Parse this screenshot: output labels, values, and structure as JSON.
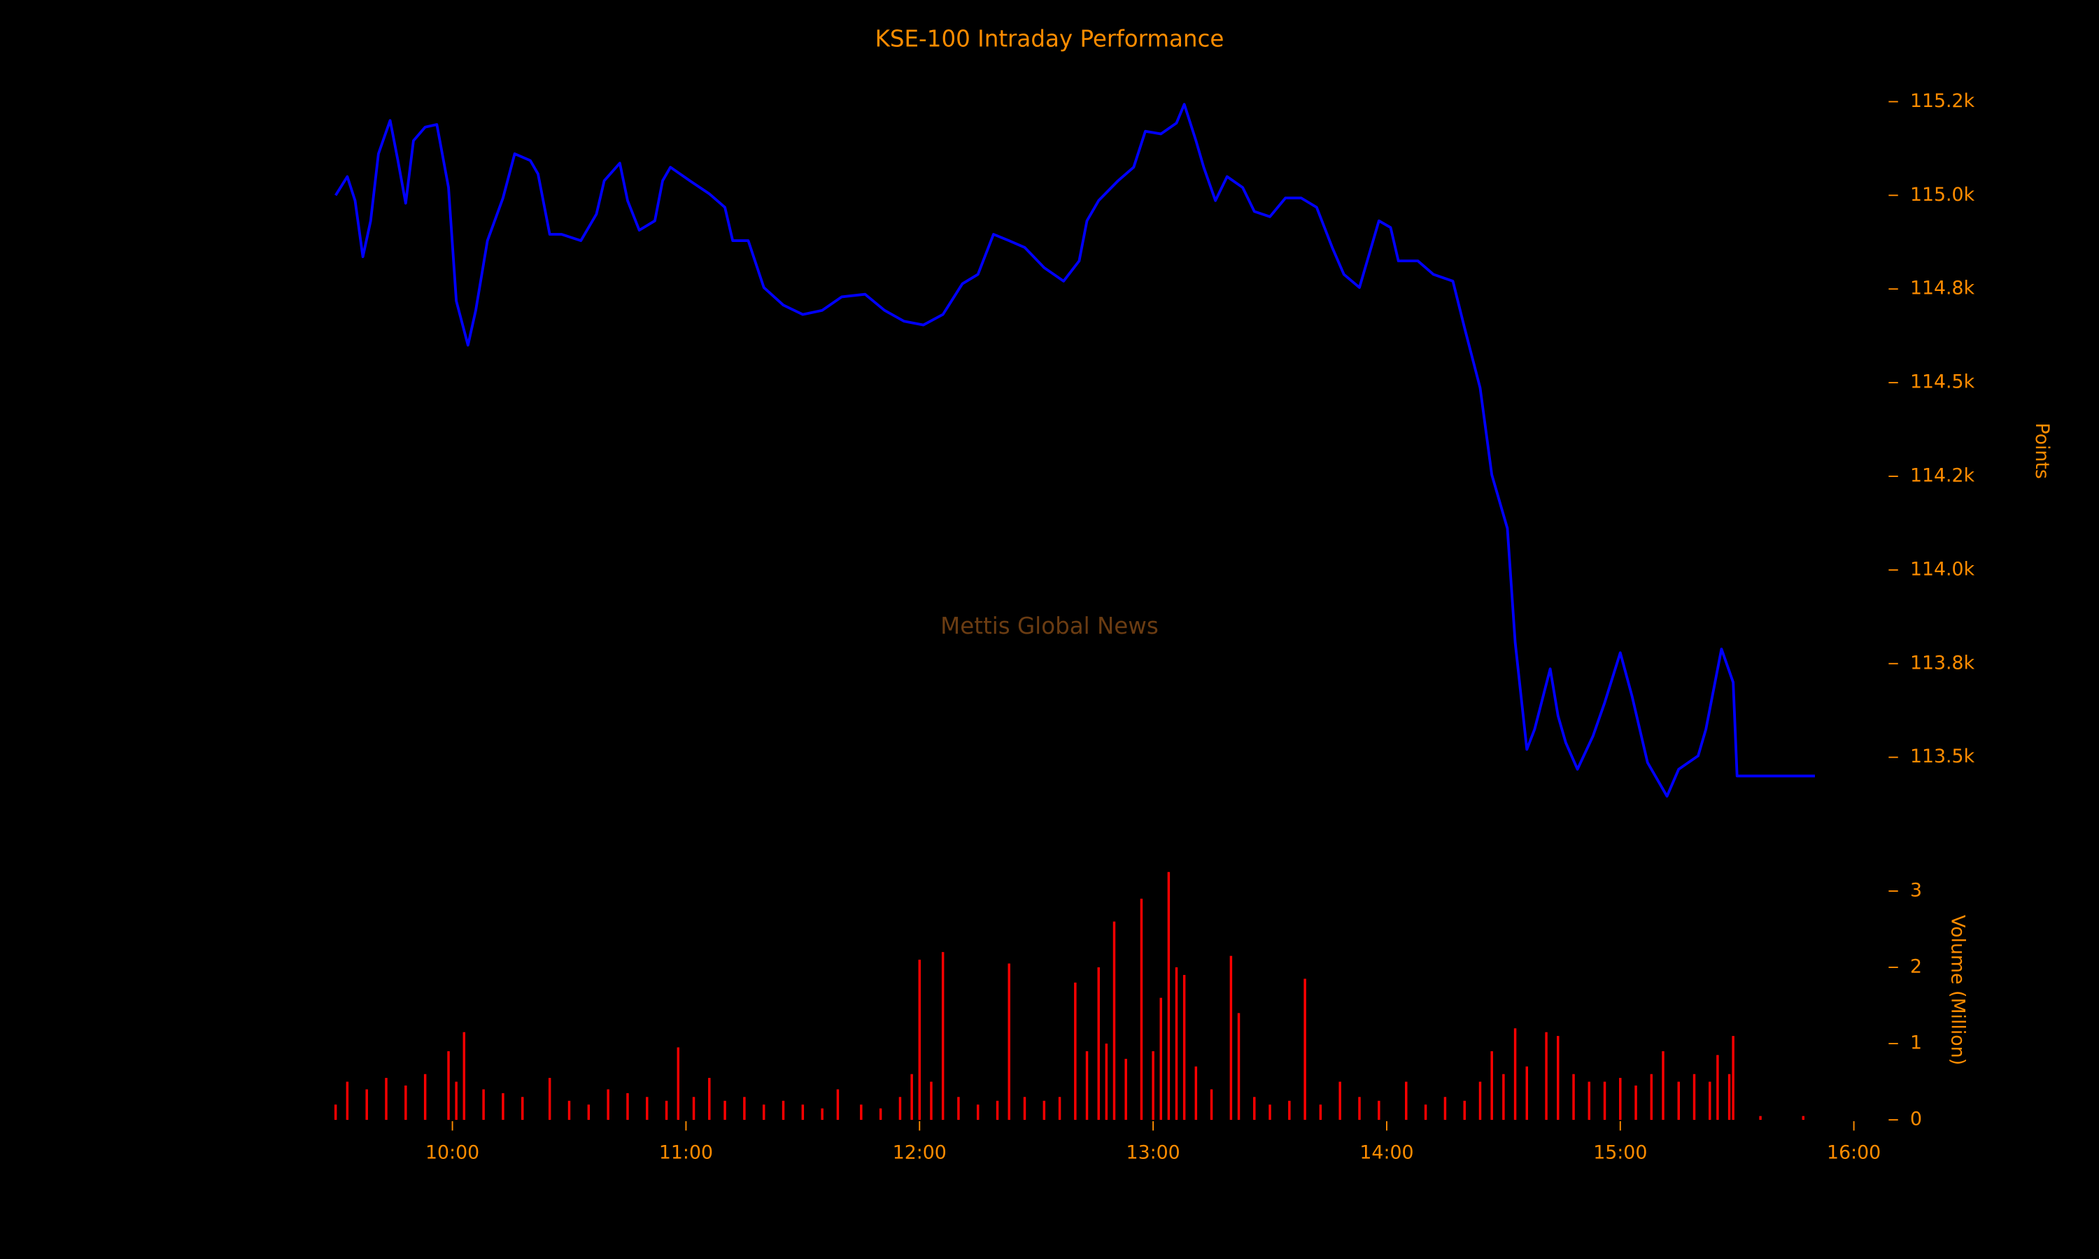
{
  "chart_data": [
    {
      "type": "line",
      "title": "KSE-100 Intraday Performance",
      "ylabel": "Points",
      "annotation": "Mettis Global News",
      "color": "#0000ff",
      "xlim": [
        "09:30",
        "16:00"
      ],
      "ylim": [
        113300,
        115300
      ],
      "yticks": [
        {
          "value": 115250,
          "label": "115.2k"
        },
        {
          "value": 115000,
          "label": "115.0k"
        },
        {
          "value": 114750,
          "label": "114.8k"
        },
        {
          "value": 114500,
          "label": "114.5k"
        },
        {
          "value": 114250,
          "label": "114.2k"
        },
        {
          "value": 114000,
          "label": "114.0k"
        },
        {
          "value": 113750,
          "label": "113.8k"
        },
        {
          "value": 113500,
          "label": "113.5k"
        }
      ],
      "x": [
        "09:30",
        "09:33",
        "09:35",
        "09:37",
        "09:39",
        "09:41",
        "09:44",
        "09:46",
        "09:48",
        "09:50",
        "09:53",
        "09:56",
        "09:59",
        "10:01",
        "10:04",
        "10:06",
        "10:09",
        "10:13",
        "10:16",
        "10:20",
        "10:22",
        "10:25",
        "10:28",
        "10:33",
        "10:37",
        "10:39",
        "10:43",
        "10:45",
        "10:48",
        "10:52",
        "10:54",
        "10:56",
        "11:01",
        "11:06",
        "11:10",
        "11:12",
        "11:16",
        "11:20",
        "11:25",
        "11:30",
        "11:35",
        "11:40",
        "11:46",
        "11:51",
        "11:56",
        "12:01",
        "12:06",
        "12:11",
        "12:15",
        "12:19",
        "12:23",
        "12:27",
        "12:32",
        "12:37",
        "12:41",
        "12:43",
        "12:46",
        "12:51",
        "12:55",
        "12:58",
        "13:02",
        "13:06",
        "13:08",
        "13:11",
        "13:13",
        "13:16",
        "13:19",
        "13:23",
        "13:26",
        "13:30",
        "13:34",
        "13:38",
        "13:42",
        "13:46",
        "13:49",
        "13:53",
        "13:55",
        "13:58",
        "14:01",
        "14:03",
        "14:08",
        "14:12",
        "14:17",
        "14:20",
        "14:24",
        "14:27",
        "14:31",
        "14:33",
        "14:36",
        "14:38",
        "14:42",
        "14:44",
        "14:46",
        "14:49",
        "14:53",
        "14:56",
        "15:00",
        "15:03",
        "15:07",
        "15:12",
        "15:15",
        "15:20",
        "15:22",
        "15:26",
        "15:29",
        "15:30",
        "15:50"
      ],
      "values": [
        115000,
        115050,
        114986,
        114836,
        114932,
        115111,
        115200,
        115093,
        114979,
        115146,
        115182,
        115189,
        115021,
        114718,
        114600,
        114693,
        114879,
        114993,
        115111,
        115093,
        115057,
        114896,
        114896,
        114879,
        114950,
        115039,
        115086,
        114986,
        114907,
        114932,
        115039,
        115075,
        115039,
        115004,
        114968,
        114879,
        114879,
        114754,
        114707,
        114682,
        114693,
        114729,
        114736,
        114693,
        114664,
        114654,
        114682,
        114764,
        114789,
        114896,
        114879,
        114861,
        114807,
        114771,
        114825,
        114932,
        114986,
        115039,
        115075,
        115171,
        115164,
        115193,
        115243,
        115146,
        115075,
        114986,
        115050,
        115021,
        114957,
        114943,
        114993,
        114993,
        114968,
        114861,
        114789,
        114754,
        114825,
        114932,
        114914,
        114825,
        114825,
        114789,
        114771,
        114646,
        114486,
        114254,
        114111,
        113807,
        113521,
        113575,
        113736,
        113611,
        113539,
        113468,
        113557,
        113646,
        113779,
        113664,
        113486,
        113396,
        113468,
        113504,
        113575,
        113789,
        113700,
        113450,
        113450
      ]
    },
    {
      "type": "bar",
      "ylabel": "Volume (Million)",
      "color": "#ff0000",
      "xlim": [
        "09:30",
        "16:00"
      ],
      "xticks": [
        "10:00",
        "11:00",
        "12:00",
        "13:00",
        "14:00",
        "15:00",
        "16:00"
      ],
      "ylim": [
        0,
        3.3
      ],
      "yticks": [
        3,
        2,
        1,
        0
      ],
      "x": [
        "09:30",
        "09:33",
        "09:38",
        "09:43",
        "09:48",
        "09:53",
        "09:59",
        "10:01",
        "10:03",
        "10:08",
        "10:13",
        "10:18",
        "10:25",
        "10:30",
        "10:35",
        "10:40",
        "10:45",
        "10:50",
        "10:55",
        "10:58",
        "11:02",
        "11:06",
        "11:10",
        "11:15",
        "11:20",
        "11:25",
        "11:30",
        "11:35",
        "11:39",
        "11:45",
        "11:50",
        "11:55",
        "11:58",
        "12:00",
        "12:03",
        "12:06",
        "12:10",
        "12:15",
        "12:20",
        "12:23",
        "12:27",
        "12:32",
        "12:36",
        "12:40",
        "12:43",
        "12:46",
        "12:48",
        "12:50",
        "12:53",
        "12:57",
        "13:00",
        "13:02",
        "13:04",
        "13:06",
        "13:08",
        "13:11",
        "13:15",
        "13:20",
        "13:22",
        "13:26",
        "13:30",
        "13:35",
        "13:39",
        "13:43",
        "13:48",
        "13:53",
        "13:58",
        "14:05",
        "14:10",
        "14:15",
        "14:20",
        "14:24",
        "14:27",
        "14:30",
        "14:33",
        "14:36",
        "14:41",
        "14:44",
        "14:48",
        "14:52",
        "14:56",
        "15:00",
        "15:04",
        "15:08",
        "15:11",
        "15:15",
        "15:19",
        "15:23",
        "15:25",
        "15:28",
        "15:29",
        "15:36",
        "15:47"
      ],
      "values": [
        0.2,
        0.5,
        0.4,
        0.55,
        0.45,
        0.6,
        0.9,
        0.5,
        1.15,
        0.4,
        0.35,
        0.3,
        0.55,
        0.25,
        0.2,
        0.4,
        0.35,
        0.3,
        0.25,
        0.95,
        0.3,
        0.55,
        0.25,
        0.3,
        0.2,
        0.25,
        0.2,
        0.15,
        0.4,
        0.2,
        0.15,
        0.3,
        0.6,
        2.1,
        0.5,
        2.2,
        0.3,
        0.2,
        0.25,
        2.05,
        0.3,
        0.25,
        0.3,
        1.8,
        0.9,
        2.0,
        1.0,
        2.6,
        0.8,
        2.9,
        0.9,
        1.6,
        3.25,
        2.0,
        1.9,
        0.7,
        0.4,
        2.15,
        1.4,
        0.3,
        0.2,
        0.25,
        1.85,
        0.2,
        0.5,
        0.3,
        0.25,
        0.5,
        0.2,
        0.3,
        0.25,
        0.5,
        0.9,
        0.6,
        1.2,
        0.7,
        1.15,
        1.1,
        0.6,
        0.5,
        0.5,
        0.55,
        0.45,
        0.6,
        0.9,
        0.5,
        0.6,
        0.5,
        0.85,
        0.6,
        1.1,
        0.05,
        0.05
      ]
    }
  ]
}
